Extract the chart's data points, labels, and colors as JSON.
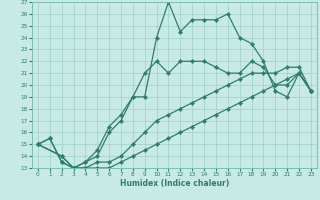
{
  "xlabel": "Humidex (Indice chaleur)",
  "bg_color": "#c8eae5",
  "line_color": "#2e7d6e",
  "grid_color": "#a0d0c8",
  "xlim": [
    -0.5,
    23.5
  ],
  "ylim": [
    13,
    27
  ],
  "xticks": [
    0,
    1,
    2,
    3,
    4,
    5,
    6,
    7,
    8,
    9,
    10,
    11,
    12,
    13,
    14,
    15,
    16,
    17,
    18,
    19,
    20,
    21,
    22,
    23
  ],
  "yticks": [
    13,
    14,
    15,
    16,
    17,
    18,
    19,
    20,
    21,
    22,
    23,
    24,
    25,
    26,
    27
  ],
  "series": [
    {
      "x": [
        0,
        1,
        2,
        3,
        4,
        5,
        6,
        7,
        8,
        9,
        10,
        11,
        12,
        13,
        14,
        15,
        16,
        17,
        18,
        19,
        20,
        21,
        22,
        23
      ],
      "y": [
        15,
        15.5,
        13.5,
        13,
        13.5,
        14.5,
        16.5,
        17.5,
        19,
        19,
        24,
        27,
        24.5,
        25.5,
        25.5,
        25.5,
        26,
        24,
        23.5,
        22,
        19.5,
        19,
        21,
        19.5
      ]
    },
    {
      "x": [
        0,
        1,
        2,
        3,
        4,
        5,
        6,
        7,
        8,
        9,
        10,
        11,
        12,
        13,
        14,
        15,
        16,
        17,
        18,
        19,
        20,
        21,
        22,
        23
      ],
      "y": [
        15,
        15.5,
        13.5,
        13,
        13.5,
        14,
        16,
        17,
        19,
        21,
        22,
        21,
        22,
        22,
        22,
        21.5,
        21,
        21,
        22,
        21.5,
        20,
        20,
        21,
        19.5
      ]
    },
    {
      "x": [
        0,
        2,
        3,
        4,
        5,
        6,
        7,
        8,
        9,
        10,
        11,
        12,
        13,
        14,
        15,
        16,
        17,
        18,
        19,
        20,
        21,
        22,
        23
      ],
      "y": [
        15,
        14,
        13,
        13,
        13.5,
        13.5,
        14,
        15,
        16,
        17,
        17.5,
        18,
        18.5,
        19,
        19.5,
        20,
        20.5,
        21,
        21,
        21,
        21.5,
        21.5,
        19.5
      ]
    },
    {
      "x": [
        0,
        2,
        3,
        4,
        5,
        6,
        7,
        8,
        9,
        10,
        11,
        12,
        13,
        14,
        15,
        16,
        17,
        18,
        19,
        20,
        21,
        22,
        23
      ],
      "y": [
        15,
        14,
        13,
        13,
        13,
        13,
        13.5,
        14,
        14.5,
        15,
        15.5,
        16,
        16.5,
        17,
        17.5,
        18,
        18.5,
        19,
        19.5,
        20,
        20.5,
        21,
        19.5
      ]
    }
  ]
}
